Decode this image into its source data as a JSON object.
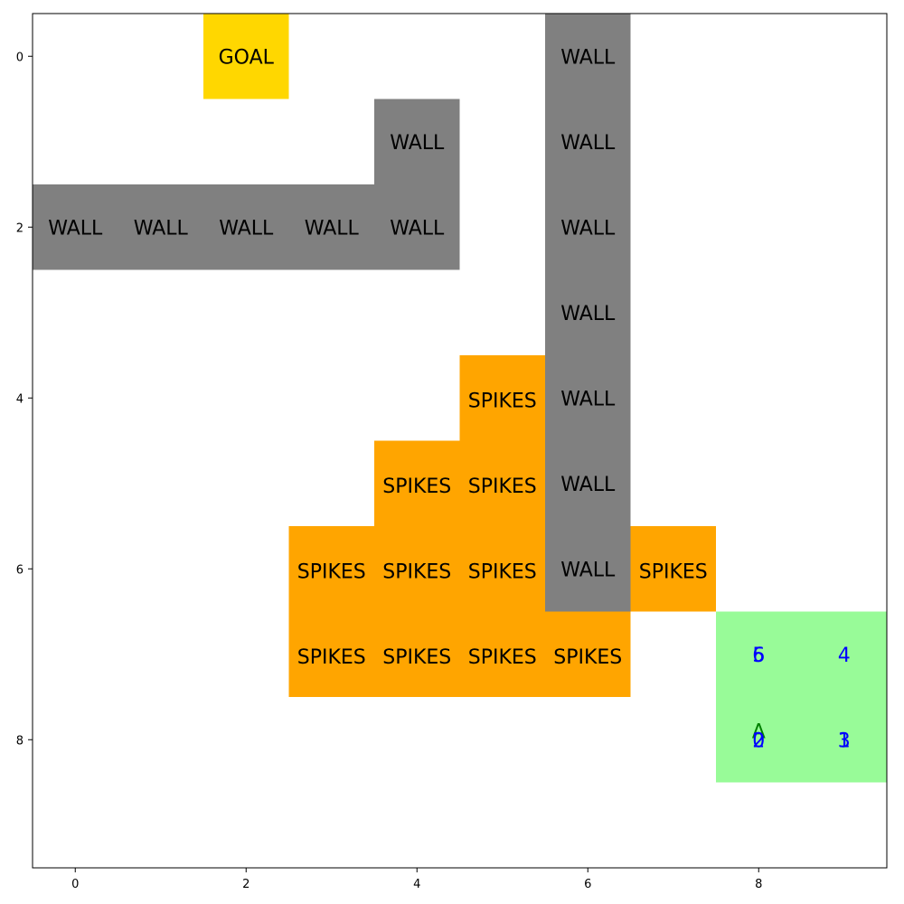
{
  "grid": {
    "rows": 10,
    "cols": 10,
    "x_ticks": [
      "0",
      "2",
      "4",
      "6",
      "8"
    ],
    "y_ticks": [
      "0",
      "2",
      "4",
      "6",
      "8"
    ]
  },
  "colors": {
    "goal": "#FFD700",
    "wall": "#808080",
    "spikes": "#FFA500",
    "path": "#98FB98",
    "step_label": "#0000FF",
    "agent_label": "#008000"
  },
  "cells": [
    {
      "row": 0,
      "col": 2,
      "type": "goal",
      "label": "GOAL"
    },
    {
      "row": 0,
      "col": 6,
      "type": "wall",
      "label": "WALL"
    },
    {
      "row": 1,
      "col": 4,
      "type": "wall",
      "label": "WALL"
    },
    {
      "row": 1,
      "col": 6,
      "type": "wall",
      "label": "WALL"
    },
    {
      "row": 2,
      "col": 0,
      "type": "wall",
      "label": "WALL"
    },
    {
      "row": 2,
      "col": 1,
      "type": "wall",
      "label": "WALL"
    },
    {
      "row": 2,
      "col": 2,
      "type": "wall",
      "label": "WALL"
    },
    {
      "row": 2,
      "col": 3,
      "type": "wall",
      "label": "WALL"
    },
    {
      "row": 2,
      "col": 4,
      "type": "wall",
      "label": "WALL"
    },
    {
      "row": 2,
      "col": 6,
      "type": "wall",
      "label": "WALL"
    },
    {
      "row": 3,
      "col": 6,
      "type": "wall",
      "label": "WALL"
    },
    {
      "row": 4,
      "col": 5,
      "type": "spikes",
      "label": "SPIKES"
    },
    {
      "row": 4,
      "col": 6,
      "type": "wall",
      "label": "WALL"
    },
    {
      "row": 5,
      "col": 4,
      "type": "spikes",
      "label": "SPIKES"
    },
    {
      "row": 5,
      "col": 5,
      "type": "spikes",
      "label": "SPIKES"
    },
    {
      "row": 5,
      "col": 6,
      "type": "wall",
      "label": "WALL"
    },
    {
      "row": 6,
      "col": 3,
      "type": "spikes",
      "label": "SPIKES"
    },
    {
      "row": 6,
      "col": 4,
      "type": "spikes",
      "label": "SPIKES"
    },
    {
      "row": 6,
      "col": 5,
      "type": "spikes",
      "label": "SPIKES"
    },
    {
      "row": 6,
      "col": 6,
      "type": "wall",
      "label": "WALL"
    },
    {
      "row": 6,
      "col": 7,
      "type": "spikes",
      "label": "SPIKES"
    },
    {
      "row": 7,
      "col": 3,
      "type": "spikes",
      "label": "SPIKES"
    },
    {
      "row": 7,
      "col": 4,
      "type": "spikes",
      "label": "SPIKES"
    },
    {
      "row": 7,
      "col": 5,
      "type": "spikes",
      "label": "SPIKES"
    },
    {
      "row": 7,
      "col": 6,
      "type": "spikes",
      "label": "SPIKES"
    }
  ],
  "path_cells": [
    {
      "row": 7,
      "col": 8
    },
    {
      "row": 7,
      "col": 9
    },
    {
      "row": 8,
      "col": 8
    },
    {
      "row": 8,
      "col": 9
    }
  ],
  "step_labels": [
    {
      "row": 8,
      "col": 8,
      "text": "0"
    },
    {
      "row": 8,
      "col": 9,
      "text": "1"
    },
    {
      "row": 8,
      "col": 8,
      "text": "2"
    },
    {
      "row": 8,
      "col": 9,
      "text": "3"
    },
    {
      "row": 7,
      "col": 9,
      "text": "4"
    },
    {
      "row": 7,
      "col": 8,
      "text": "5"
    },
    {
      "row": 7,
      "col": 8,
      "text": "6"
    }
  ],
  "agent": {
    "row": 8,
    "col": 8,
    "label": "A"
  }
}
